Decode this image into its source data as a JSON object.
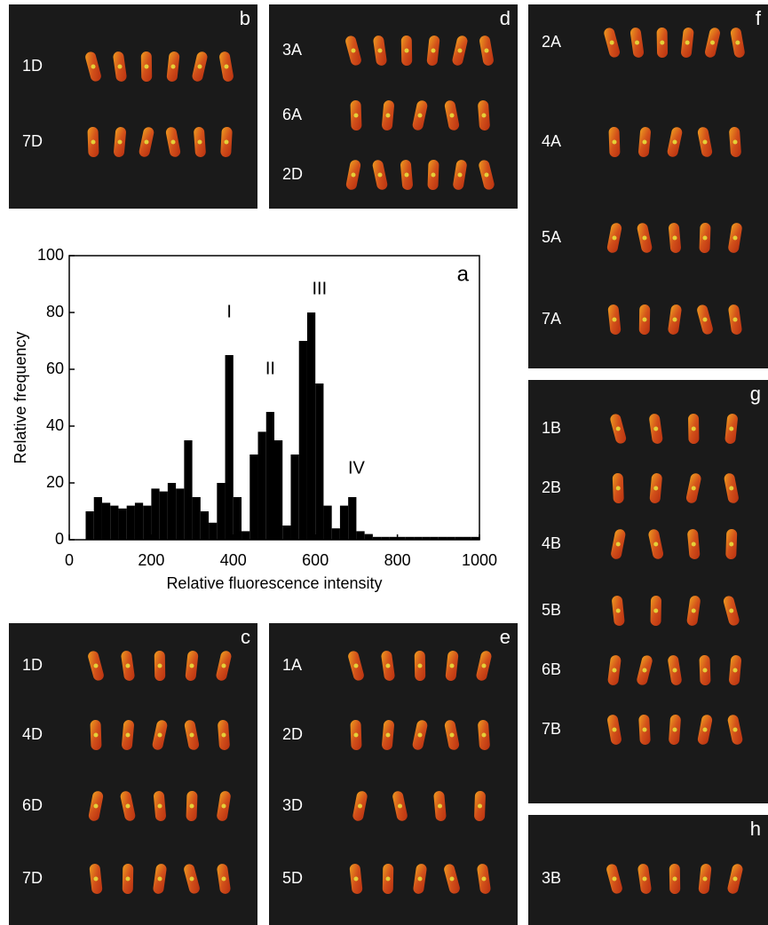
{
  "panels": [
    {
      "letter": "b",
      "rows": [
        "1D",
        "7D"
      ]
    },
    {
      "letter": "d",
      "rows": [
        "3A",
        "6A",
        "2D"
      ]
    },
    {
      "letter": "f",
      "rows": [
        "2A",
        "4A",
        "5A",
        "7A"
      ]
    },
    {
      "letter": "g",
      "rows": [
        "1B",
        "2B",
        "4B",
        "5B",
        "6B",
        "7B"
      ]
    },
    {
      "letter": "h",
      "rows": [
        "3B"
      ]
    },
    {
      "letter": "c",
      "rows": [
        "1D",
        "4D",
        "6D",
        "7D"
      ]
    },
    {
      "letter": "e",
      "rows": [
        "1A",
        "2D",
        "3D",
        "5D"
      ]
    }
  ],
  "chart_data": {
    "type": "histogram",
    "panel_label": "a",
    "xlabel": "Relative fluorescence intensity",
    "ylabel": "Relative frequency",
    "bins": [
      40,
      60,
      80,
      100,
      120,
      140,
      160,
      180,
      200,
      220,
      240,
      260,
      280,
      300,
      320,
      340,
      360,
      380,
      400,
      420,
      440,
      460,
      480,
      500,
      520,
      540,
      560,
      580,
      600,
      620,
      640,
      660,
      680,
      700,
      720,
      740,
      760,
      780,
      800,
      820,
      840,
      860,
      880,
      900,
      920,
      940,
      960,
      980,
      1000
    ],
    "counts": [
      10,
      15,
      13,
      12,
      11,
      12,
      13,
      12,
      18,
      17,
      20,
      18,
      35,
      15,
      10,
      6,
      20,
      65,
      15,
      3,
      30,
      38,
      45,
      35,
      5,
      30,
      70,
      80,
      55,
      12,
      4,
      12,
      15,
      3,
      2,
      1,
      1,
      1,
      1,
      1,
      1,
      1,
      1,
      1,
      1,
      1,
      1,
      1
    ],
    "color": "#000000",
    "xlim": [
      0,
      1000
    ],
    "ylim": [
      0,
      100
    ],
    "xticks": [
      0,
      200,
      400,
      600,
      800,
      1000
    ],
    "yticks": [
      0,
      20,
      40,
      60,
      80,
      100
    ],
    "annotations": [
      {
        "text": "I",
        "x": 390,
        "y": 80
      },
      {
        "text": "II",
        "x": 490,
        "y": 60
      },
      {
        "text": "III",
        "x": 610,
        "y": 88
      },
      {
        "text": "IV",
        "x": 700,
        "y": 25
      }
    ]
  }
}
